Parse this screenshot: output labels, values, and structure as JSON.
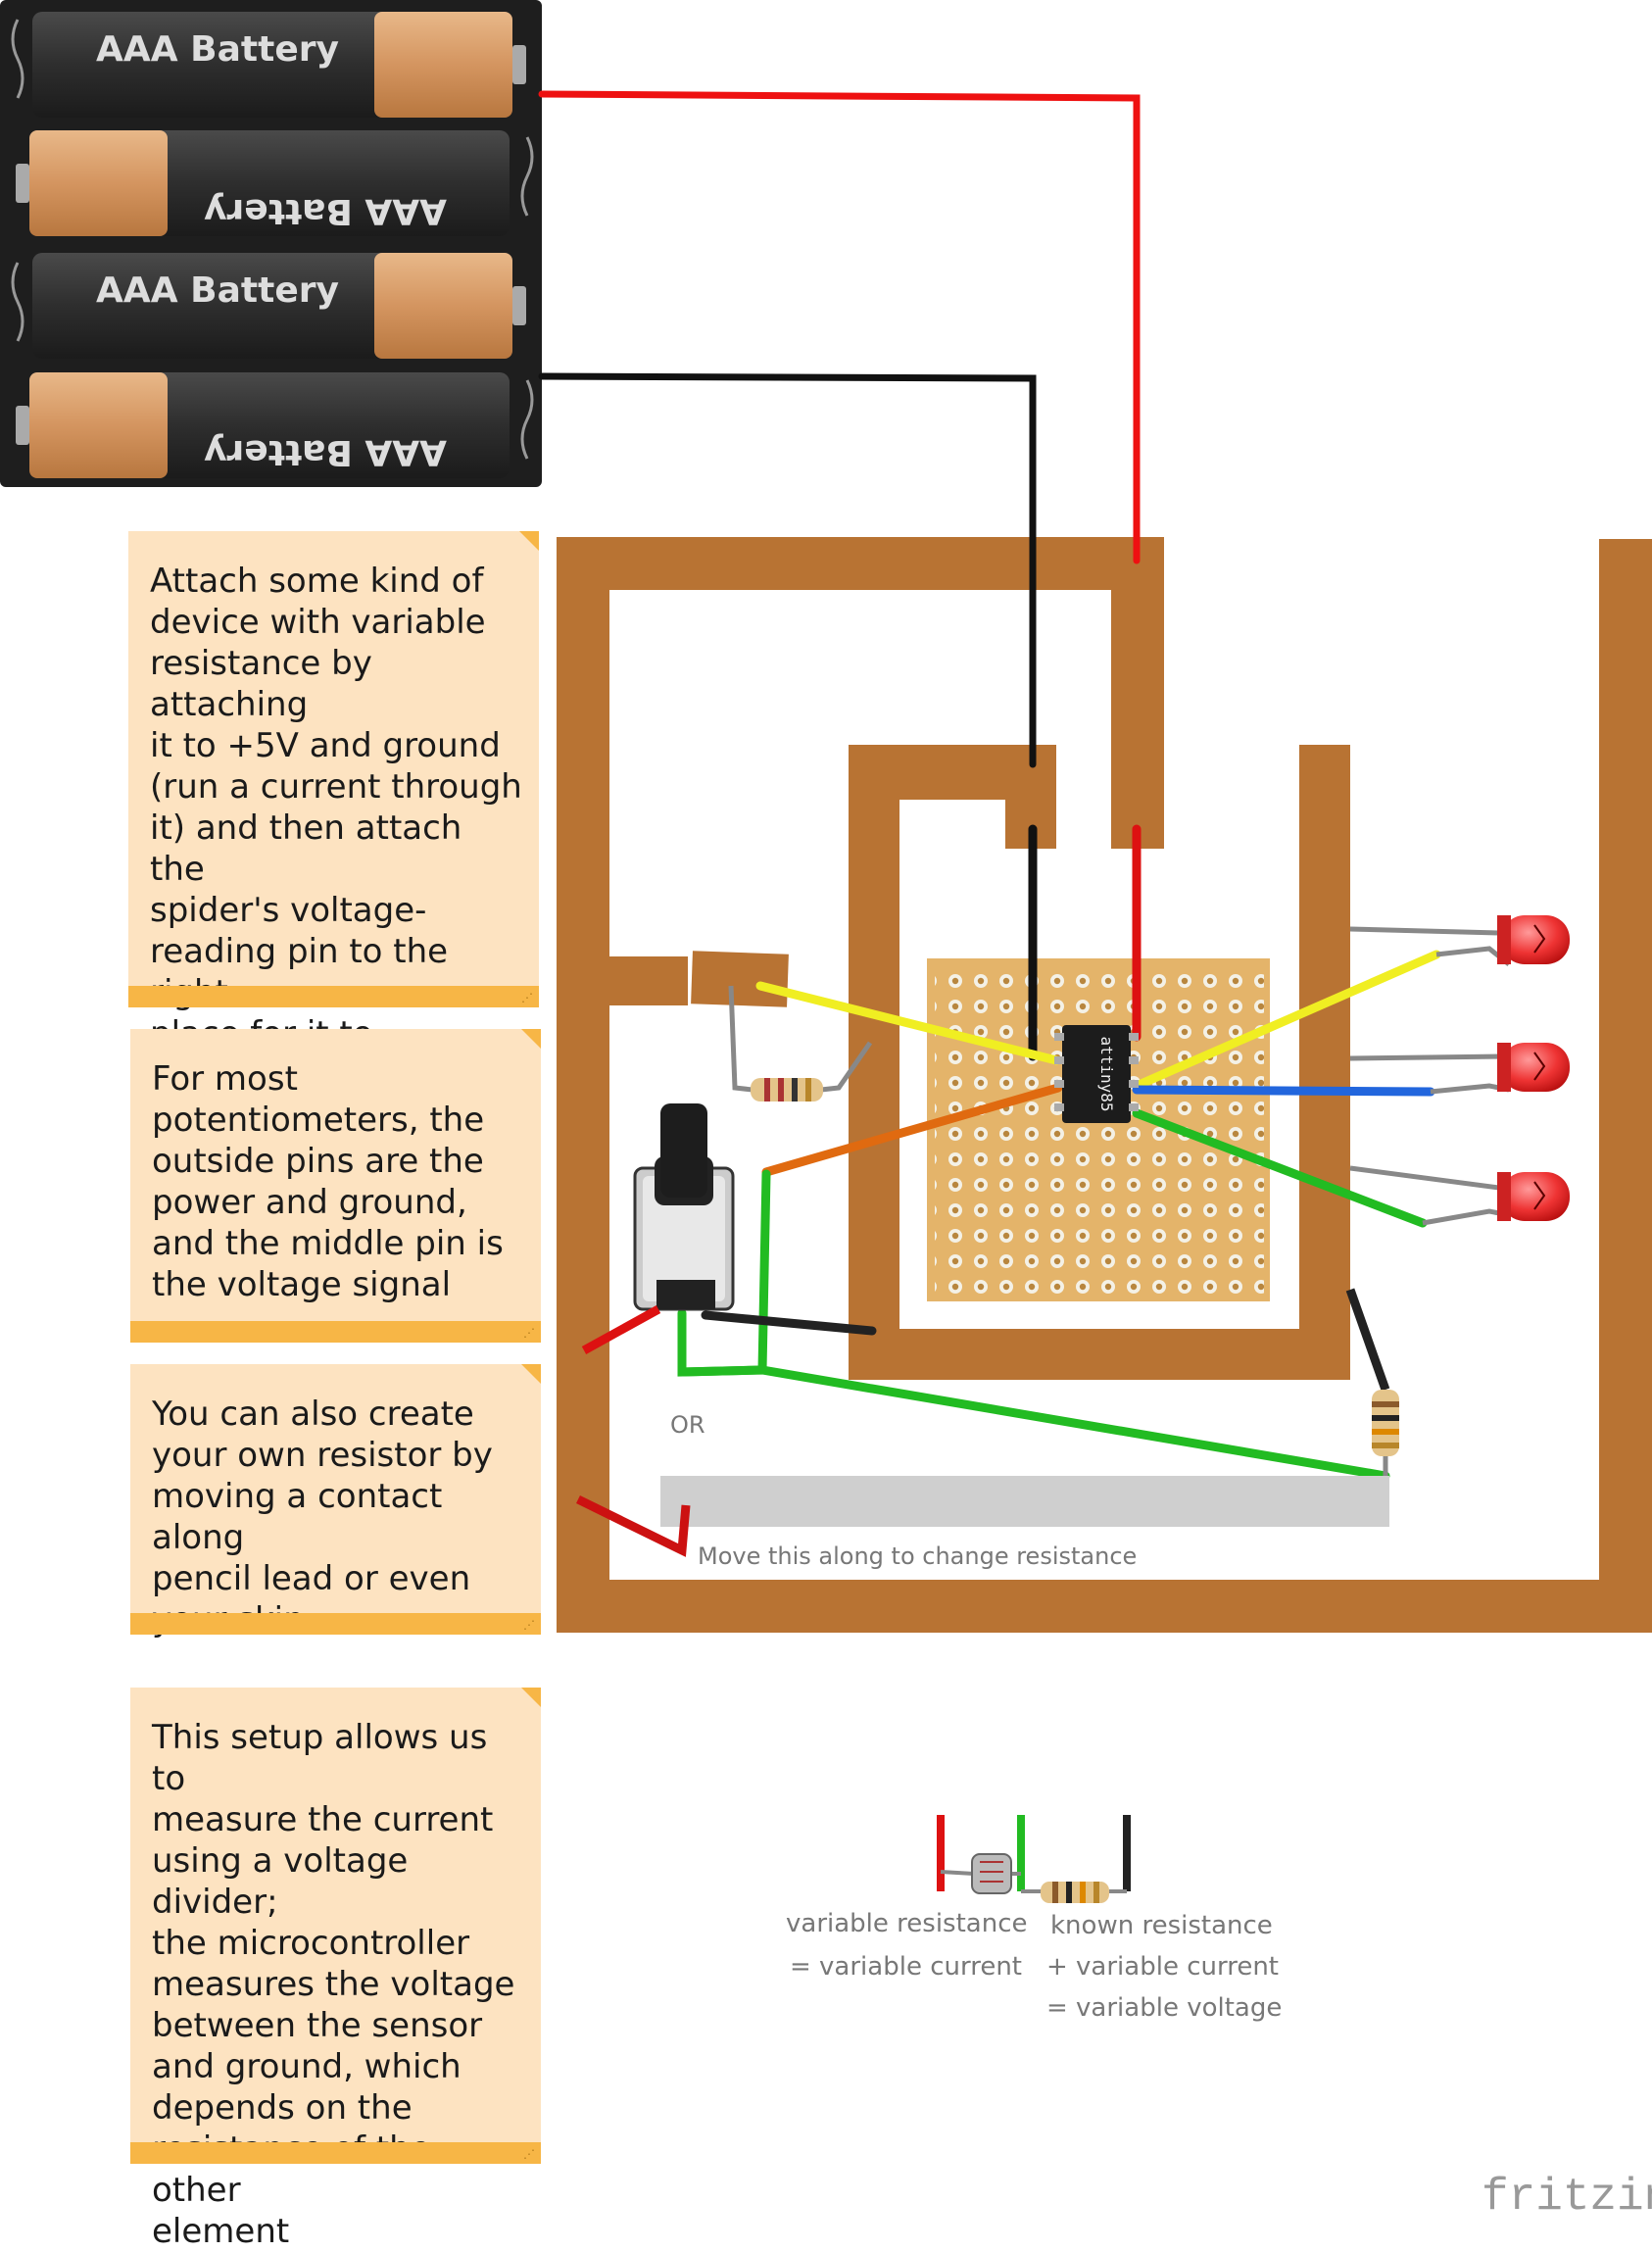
{
  "batteries": [
    {
      "label": "AAA Battery"
    },
    {
      "label": "AAA Battery"
    },
    {
      "label": "AAA Battery"
    },
    {
      "label": "AAA Battery"
    }
  ],
  "chip": {
    "label": "attiny85"
  },
  "notes": [
    {
      "text": "Attach some kind of\ndevice with variable\nresistance by attaching\nit to +5V and ground\n(run a current through\nit) and then attach the\nspider's voltage-\nreading pin to the right\nplace for it to measure\nthe resistance"
    },
    {
      "text": "For most\npotentiometers, the\noutside pins are the\npower and ground,\nand the middle pin is\nthe voltage signal"
    },
    {
      "text": "You can also create\nyour own resistor by\nmoving a contact along\npencil lead or even\nyour skin"
    },
    {
      "text": "This setup allows us to\nmeasure the current\nusing a voltage divider;\nthe microcontroller\nmeasures the voltage\nbetween the sensor\nand ground, which\ndepends on the\nresistance of the other\nelement"
    }
  ],
  "labels": {
    "or": "OR",
    "move_hint": "Move this along to change resistance",
    "var_res_1": "variable resistance",
    "var_res_2": "= variable current",
    "known_1": "known resistance",
    "known_2": "+ variable current",
    "known_3": "= variable voltage"
  },
  "brand": {
    "name": "fritzing"
  },
  "colors": {
    "copper": "#b87333",
    "wire_red": "#e11",
    "wire_black": "#111",
    "wire_yellow": "#f0ee22",
    "wire_green": "#22bb22",
    "wire_blue": "#2266dd",
    "wire_orange": "#e06a10",
    "note_bg": "#fde3c1",
    "note_accent": "#f7b646",
    "protoboard": "#e4b46a",
    "led": "#ee3333"
  }
}
